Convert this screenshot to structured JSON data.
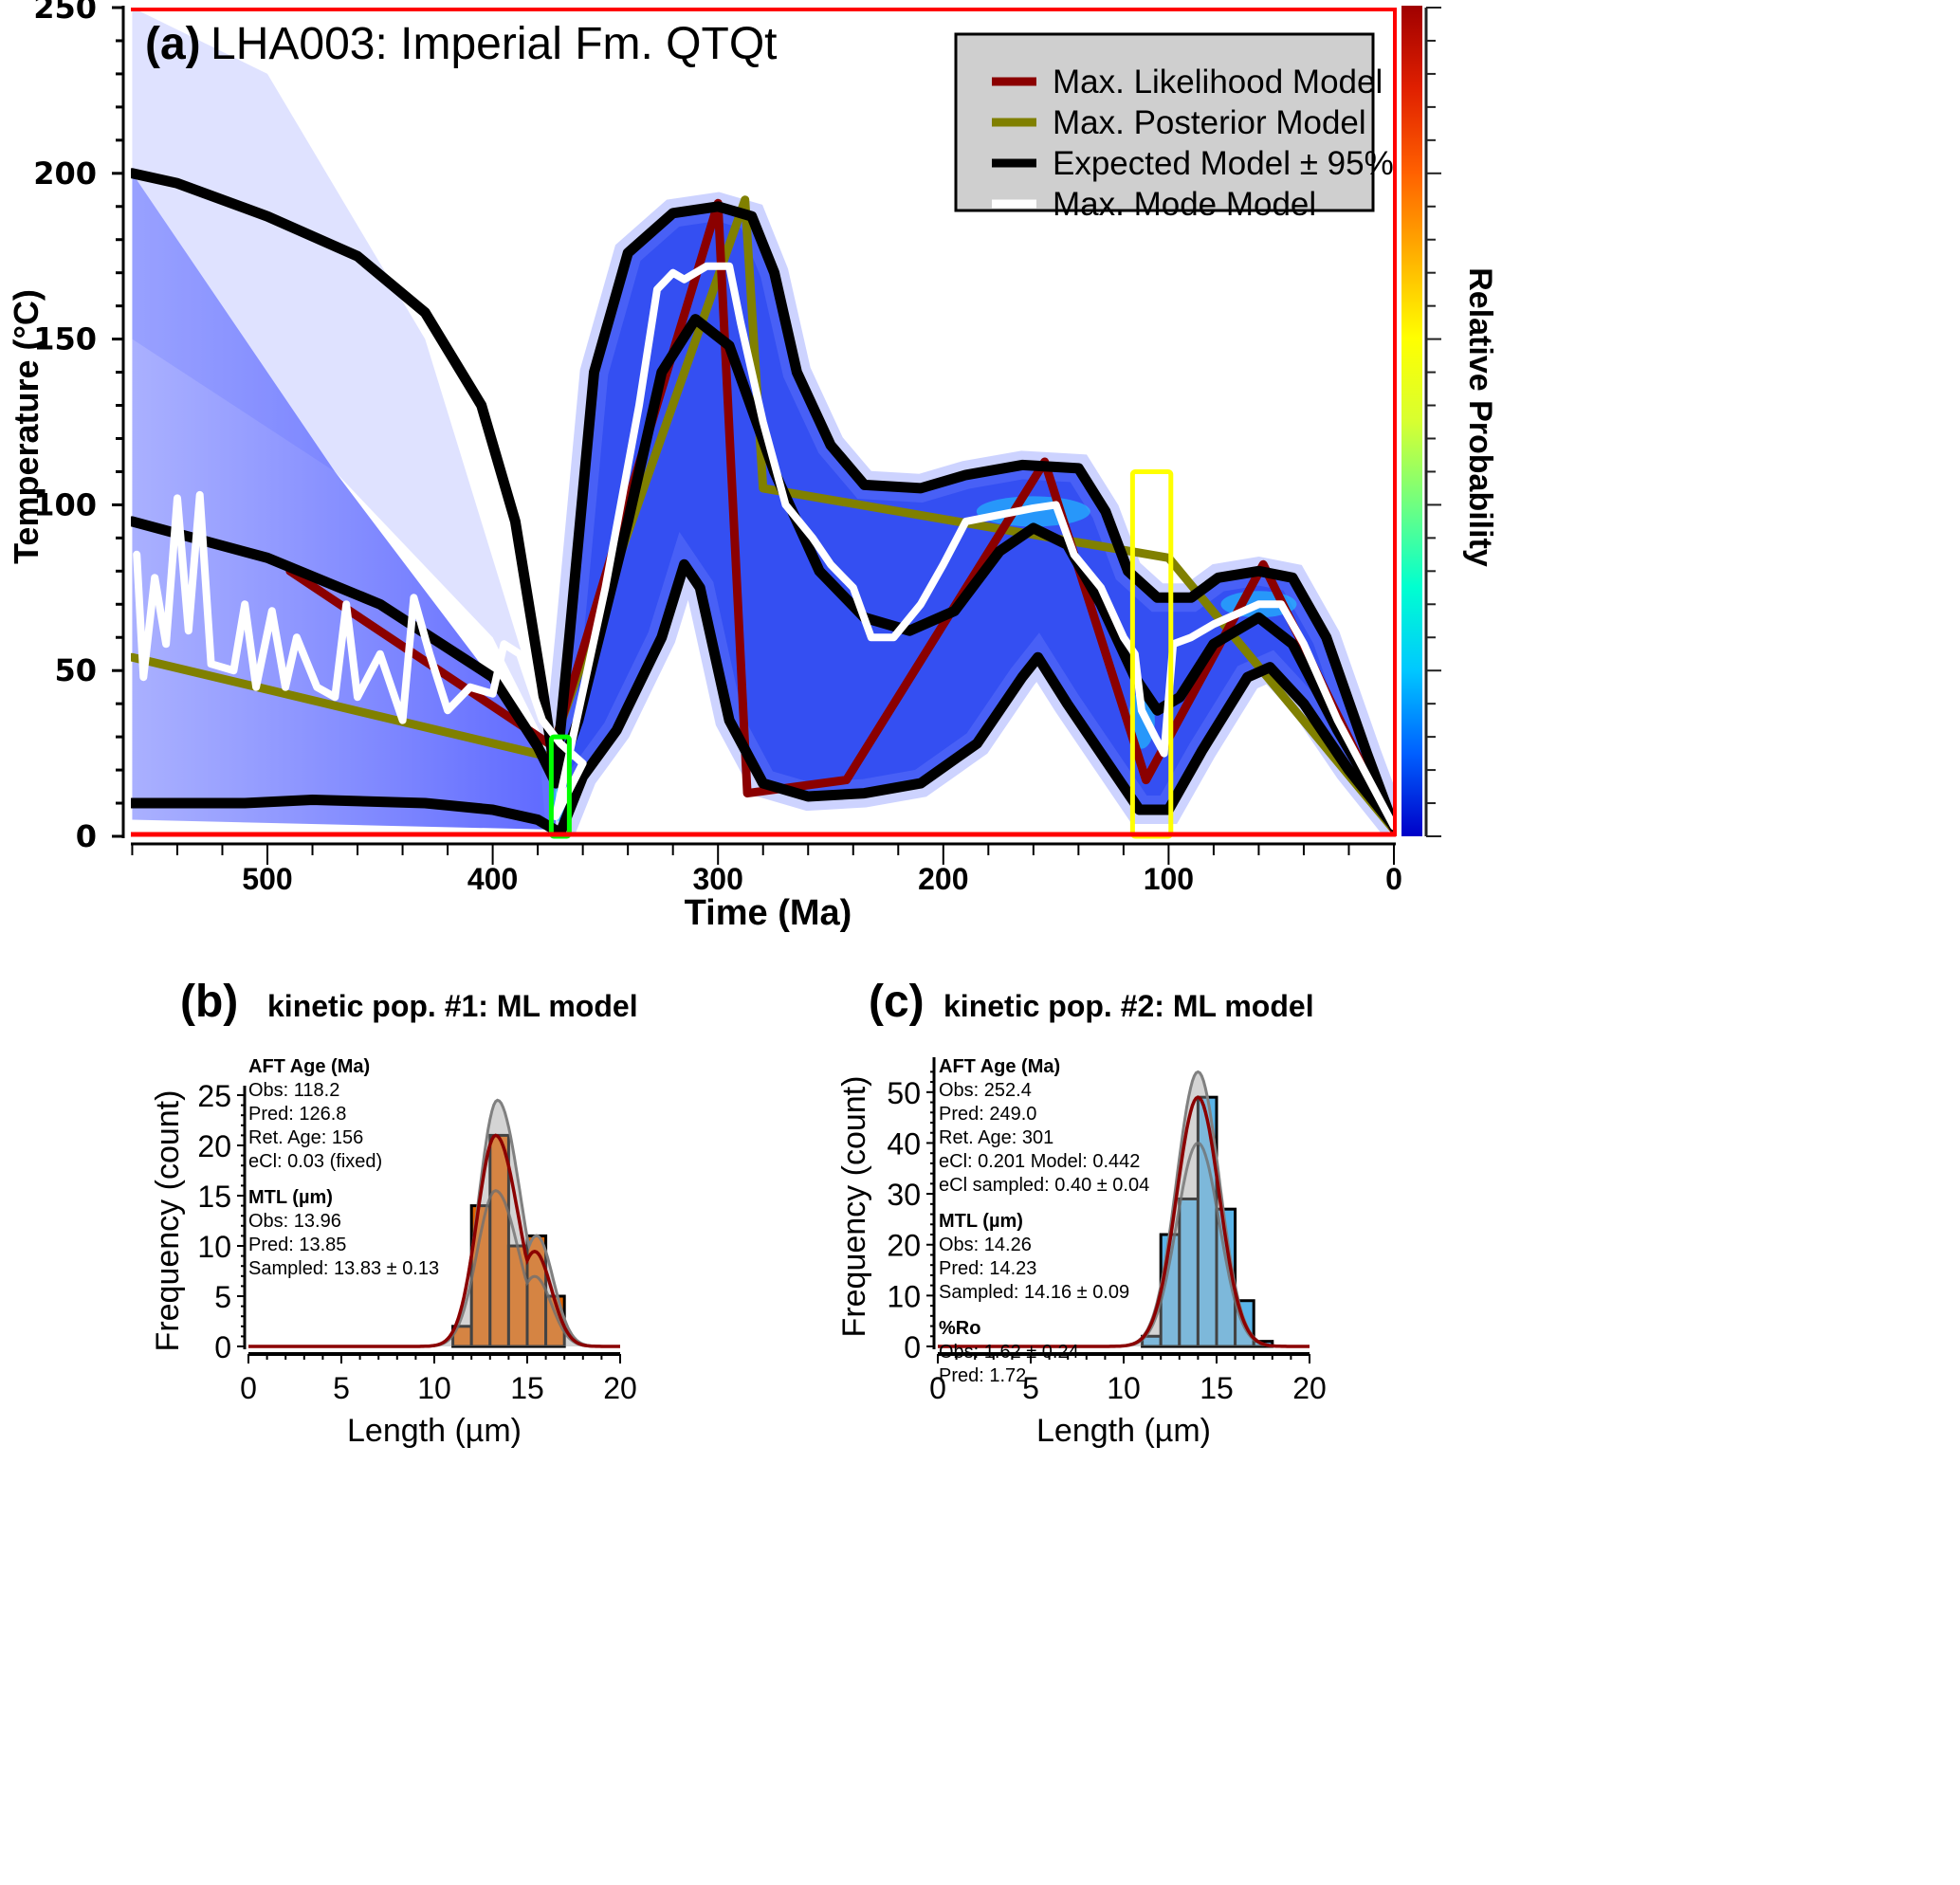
{
  "chart_data": [
    {
      "id": "a",
      "type": "line",
      "panel_label": "(a)",
      "title": "LHA003: Imperial Fm. QTQt",
      "xlabel": "Time  (Ma)",
      "ylabel": "Temperature  (°C)",
      "colorbar_label": "Relative Probability",
      "xlim": [
        560,
        0
      ],
      "ylim": [
        0,
        250
      ],
      "x_ticks": [
        500,
        400,
        300,
        200,
        100,
        0
      ],
      "y_ticks": [
        0,
        50,
        100,
        150,
        200,
        250
      ],
      "background": "heatmap (relative probability density of sampled t-T paths)",
      "colorbar_colors": [
        "#0000c8",
        "#0060ff",
        "#00c8ff",
        "#00ffd0",
        "#70ff80",
        "#d8ff30",
        "#ffff00",
        "#ffb000",
        "#ff6000",
        "#e02000",
        "#a00000"
      ],
      "legend": {
        "position": "top-right",
        "entries": [
          {
            "label": "Max. Likelihood Model",
            "color": "#8b0000"
          },
          {
            "label": "Max. Posterior Model",
            "color": "#808000"
          },
          {
            "label": "Expected Model ± 95%",
            "color": "#000000"
          },
          {
            "label": "Max. Mode Model",
            "color": "#ffffff"
          }
        ]
      },
      "series": [
        {
          "name": "Max. Likelihood Model",
          "color": "#8b0000",
          "points": [
            [
              490,
              80
            ],
            [
              373,
              27
            ],
            [
              300,
              191
            ],
            [
              287,
              13
            ],
            [
              243,
              17
            ],
            [
              155,
              113
            ],
            [
              110,
              17
            ],
            [
              58,
              82
            ],
            [
              0,
              2
            ]
          ]
        },
        {
          "name": "Max. Posterior Model",
          "color": "#808000",
          "points": [
            [
              560,
              54
            ],
            [
              375,
              24
            ],
            [
              288,
              192
            ],
            [
              280,
              105
            ],
            [
              100,
              84
            ],
            [
              0,
              2
            ]
          ]
        },
        {
          "name": "Expected Model",
          "color": "#000000",
          "points": [
            [
              560,
              95
            ],
            [
              500,
              84
            ],
            [
              450,
              70
            ],
            [
              400,
              48
            ],
            [
              380,
              27
            ],
            [
              372,
              16
            ],
            [
              362,
              35
            ],
            [
              340,
              95
            ],
            [
              325,
              140
            ],
            [
              310,
              156
            ],
            [
              295,
              148
            ],
            [
              275,
              110
            ],
            [
              255,
              80
            ],
            [
              235,
              66
            ],
            [
              215,
              62
            ],
            [
              195,
              68
            ],
            [
              175,
              86
            ],
            [
              160,
              93
            ],
            [
              145,
              88
            ],
            [
              130,
              70
            ],
            [
              115,
              48
            ],
            [
              105,
              38
            ],
            [
              95,
              42
            ],
            [
              80,
              58
            ],
            [
              60,
              66
            ],
            [
              45,
              58
            ],
            [
              25,
              32
            ],
            [
              0,
              3
            ]
          ]
        },
        {
          "name": "Expected Model +95%",
          "color": "#000000",
          "points": [
            [
              560,
              200
            ],
            [
              540,
              197
            ],
            [
              500,
              187
            ],
            [
              460,
              175
            ],
            [
              430,
              158
            ],
            [
              405,
              130
            ],
            [
              390,
              95
            ],
            [
              378,
              45
            ],
            [
              372,
              18
            ],
            [
              366,
              60
            ],
            [
              355,
              140
            ],
            [
              340,
              176
            ],
            [
              320,
              188
            ],
            [
              300,
              190
            ],
            [
              285,
              187
            ],
            [
              275,
              170
            ],
            [
              265,
              140
            ],
            [
              250,
              118
            ],
            [
              235,
              106
            ],
            [
              210,
              105
            ],
            [
              190,
              109
            ],
            [
              165,
              112
            ],
            [
              140,
              111
            ],
            [
              128,
              98
            ],
            [
              118,
              80
            ],
            [
              105,
              72
            ],
            [
              90,
              72
            ],
            [
              78,
              78
            ],
            [
              60,
              80
            ],
            [
              45,
              78
            ],
            [
              30,
              60
            ],
            [
              12,
              25
            ],
            [
              0,
              3
            ]
          ]
        },
        {
          "name": "Expected Model -95%",
          "color": "#000000",
          "points": [
            [
              560,
              10
            ],
            [
              510,
              10
            ],
            [
              480,
              11
            ],
            [
              430,
              10
            ],
            [
              400,
              8
            ],
            [
              380,
              5
            ],
            [
              370,
              1
            ],
            [
              360,
              18
            ],
            [
              345,
              32
            ],
            [
              325,
              60
            ],
            [
              315,
              82
            ],
            [
              308,
              75
            ],
            [
              295,
              35
            ],
            [
              280,
              16
            ],
            [
              260,
              12
            ],
            [
              235,
              13
            ],
            [
              210,
              16
            ],
            [
              185,
              28
            ],
            [
              165,
              48
            ],
            [
              158,
              54
            ],
            [
              145,
              40
            ],
            [
              125,
              20
            ],
            [
              113,
              8
            ],
            [
              100,
              8
            ],
            [
              85,
              26
            ],
            [
              65,
              48
            ],
            [
              55,
              51
            ],
            [
              40,
              40
            ],
            [
              20,
              20
            ],
            [
              0,
              3
            ]
          ]
        },
        {
          "name": "Max. Mode Model",
          "color": "#ffffff",
          "points": [
            [
              558,
              85
            ],
            [
              555,
              48
            ],
            [
              550,
              78
            ],
            [
              545,
              58
            ],
            [
              540,
              102
            ],
            [
              535,
              62
            ],
            [
              530,
              103
            ],
            [
              525,
              52
            ],
            [
              515,
              50
            ],
            [
              510,
              70
            ],
            [
              505,
              45
            ],
            [
              498,
              68
            ],
            [
              492,
              45
            ],
            [
              487,
              60
            ],
            [
              478,
              45
            ],
            [
              470,
              42
            ],
            [
              465,
              70
            ],
            [
              460,
              42
            ],
            [
              450,
              55
            ],
            [
              440,
              35
            ],
            [
              435,
              72
            ],
            [
              428,
              55
            ],
            [
              420,
              38
            ],
            [
              410,
              45
            ],
            [
              400,
              43
            ],
            [
              395,
              58
            ],
            [
              388,
              55
            ],
            [
              383,
              45
            ],
            [
              378,
              35
            ],
            [
              370,
              28
            ],
            [
              360,
              22
            ],
            [
              372,
              6
            ],
            [
              365,
              28
            ],
            [
              350,
              75
            ],
            [
              335,
              130
            ],
            [
              327,
              165
            ],
            [
              320,
              170
            ],
            [
              315,
              168
            ],
            [
              305,
              172
            ],
            [
              295,
              172
            ],
            [
              290,
              155
            ],
            [
              280,
              125
            ],
            [
              270,
              100
            ],
            [
              258,
              90
            ],
            [
              250,
              82
            ],
            [
              240,
              75
            ],
            [
              232,
              60
            ],
            [
              222,
              60
            ],
            [
              210,
              70
            ],
            [
              200,
              82
            ],
            [
              190,
              95
            ],
            [
              175,
              97
            ],
            [
              160,
              99
            ],
            [
              150,
              100
            ],
            [
              142,
              85
            ],
            [
              130,
              75
            ],
            [
              120,
              60
            ],
            [
              115,
              55
            ],
            [
              112,
              38
            ],
            [
              106,
              30
            ],
            [
              102,
              25
            ],
            [
              98,
              58
            ],
            [
              90,
              60
            ],
            [
              80,
              64
            ],
            [
              70,
              67
            ],
            [
              60,
              70
            ],
            [
              50,
              70
            ],
            [
              40,
              58
            ],
            [
              25,
              35
            ],
            [
              0,
              3
            ]
          ]
        }
      ],
      "annotations": [
        {
          "type": "box",
          "color": "#00ff00",
          "x_range": [
            374,
            366
          ],
          "y_range": [
            0,
            30
          ]
        },
        {
          "type": "box",
          "color": "#ffff00",
          "x_range": [
            116,
            99
          ],
          "y_range": [
            0,
            110
          ]
        },
        {
          "type": "line",
          "color": "#ff0000",
          "description": "red frame at T=0 and T=250 and right edge"
        }
      ]
    },
    {
      "id": "b",
      "type": "bar",
      "panel_label": "(b)",
      "title": "kinetic pop. #1: ML model",
      "xlabel": "Length (µm)",
      "ylabel": "Frequency (count)",
      "xlim": [
        0,
        20
      ],
      "ylim": [
        0,
        25
      ],
      "x_ticks": [
        0,
        5,
        10,
        15,
        20
      ],
      "y_ticks": [
        0,
        5,
        10,
        15,
        20,
        25
      ],
      "bar_color": "#e06400",
      "bin_edges": [
        11,
        12,
        13,
        14,
        15,
        16,
        17
      ],
      "values": [
        2,
        14,
        21,
        10,
        11,
        5
      ],
      "curves": {
        "predicted": {
          "color": "#8b0000",
          "peak_x": 13.3,
          "peak_y": 21
        },
        "envelope_upper": {
          "color": "#808080",
          "peak_x": 13.4,
          "peak_y": 24.5
        },
        "envelope_lower": {
          "color": "#808080",
          "peak_x": 13.3,
          "peak_y": 15.5
        }
      },
      "stats": [
        {
          "heading": "AFT Age (Ma)",
          "lines": [
            "Obs: 118.2",
            "Pred: 126.8",
            "Ret. Age: 156",
            "eCl: 0.03 (fixed)"
          ]
        },
        {
          "heading": "MTL (µm)",
          "lines": [
            "Obs: 13.96",
            "Pred: 13.85",
            "Sampled: 13.83 ± 0.13"
          ]
        }
      ]
    },
    {
      "id": "c",
      "type": "bar",
      "panel_label": "(c)",
      "title": "kinetic pop. #2: ML model",
      "xlabel": "Length (µm)",
      "ylabel": "Frequency (count)",
      "xlim": [
        0,
        20
      ],
      "ylim": [
        0,
        55
      ],
      "x_ticks": [
        0,
        5,
        10,
        15,
        20
      ],
      "y_ticks": [
        0,
        10,
        20,
        30,
        40,
        50
      ],
      "bar_color": "#5ab4e8",
      "bin_edges": [
        11,
        12,
        13,
        14,
        15,
        16,
        17,
        18
      ],
      "values": [
        2,
        22,
        29,
        49,
        27,
        9,
        1
      ],
      "curves": {
        "predicted": {
          "color": "#8b0000",
          "peak_x": 14,
          "peak_y": 49
        },
        "envelope_upper": {
          "color": "#808080",
          "peak_x": 14,
          "peak_y": 54
        },
        "envelope_lower": {
          "color": "#808080",
          "peak_x": 14,
          "peak_y": 40
        }
      },
      "stats": [
        {
          "heading": "AFT Age (Ma)",
          "lines": [
            "Obs: 252.4",
            "Pred: 249.0",
            "Ret. Age: 301",
            "eCl: 0.201 Model: 0.442",
            "eCl sampled: 0.40 ± 0.04"
          ]
        },
        {
          "heading": "MTL (µm)",
          "lines": [
            "Obs: 14.26",
            "Pred: 14.23",
            "Sampled: 14.16 ± 0.09"
          ]
        },
        {
          "heading": "%Ro",
          "lines": [
            "Obs: 1.62 ± 0.24",
            "Pred: 1.72"
          ]
        }
      ]
    }
  ]
}
